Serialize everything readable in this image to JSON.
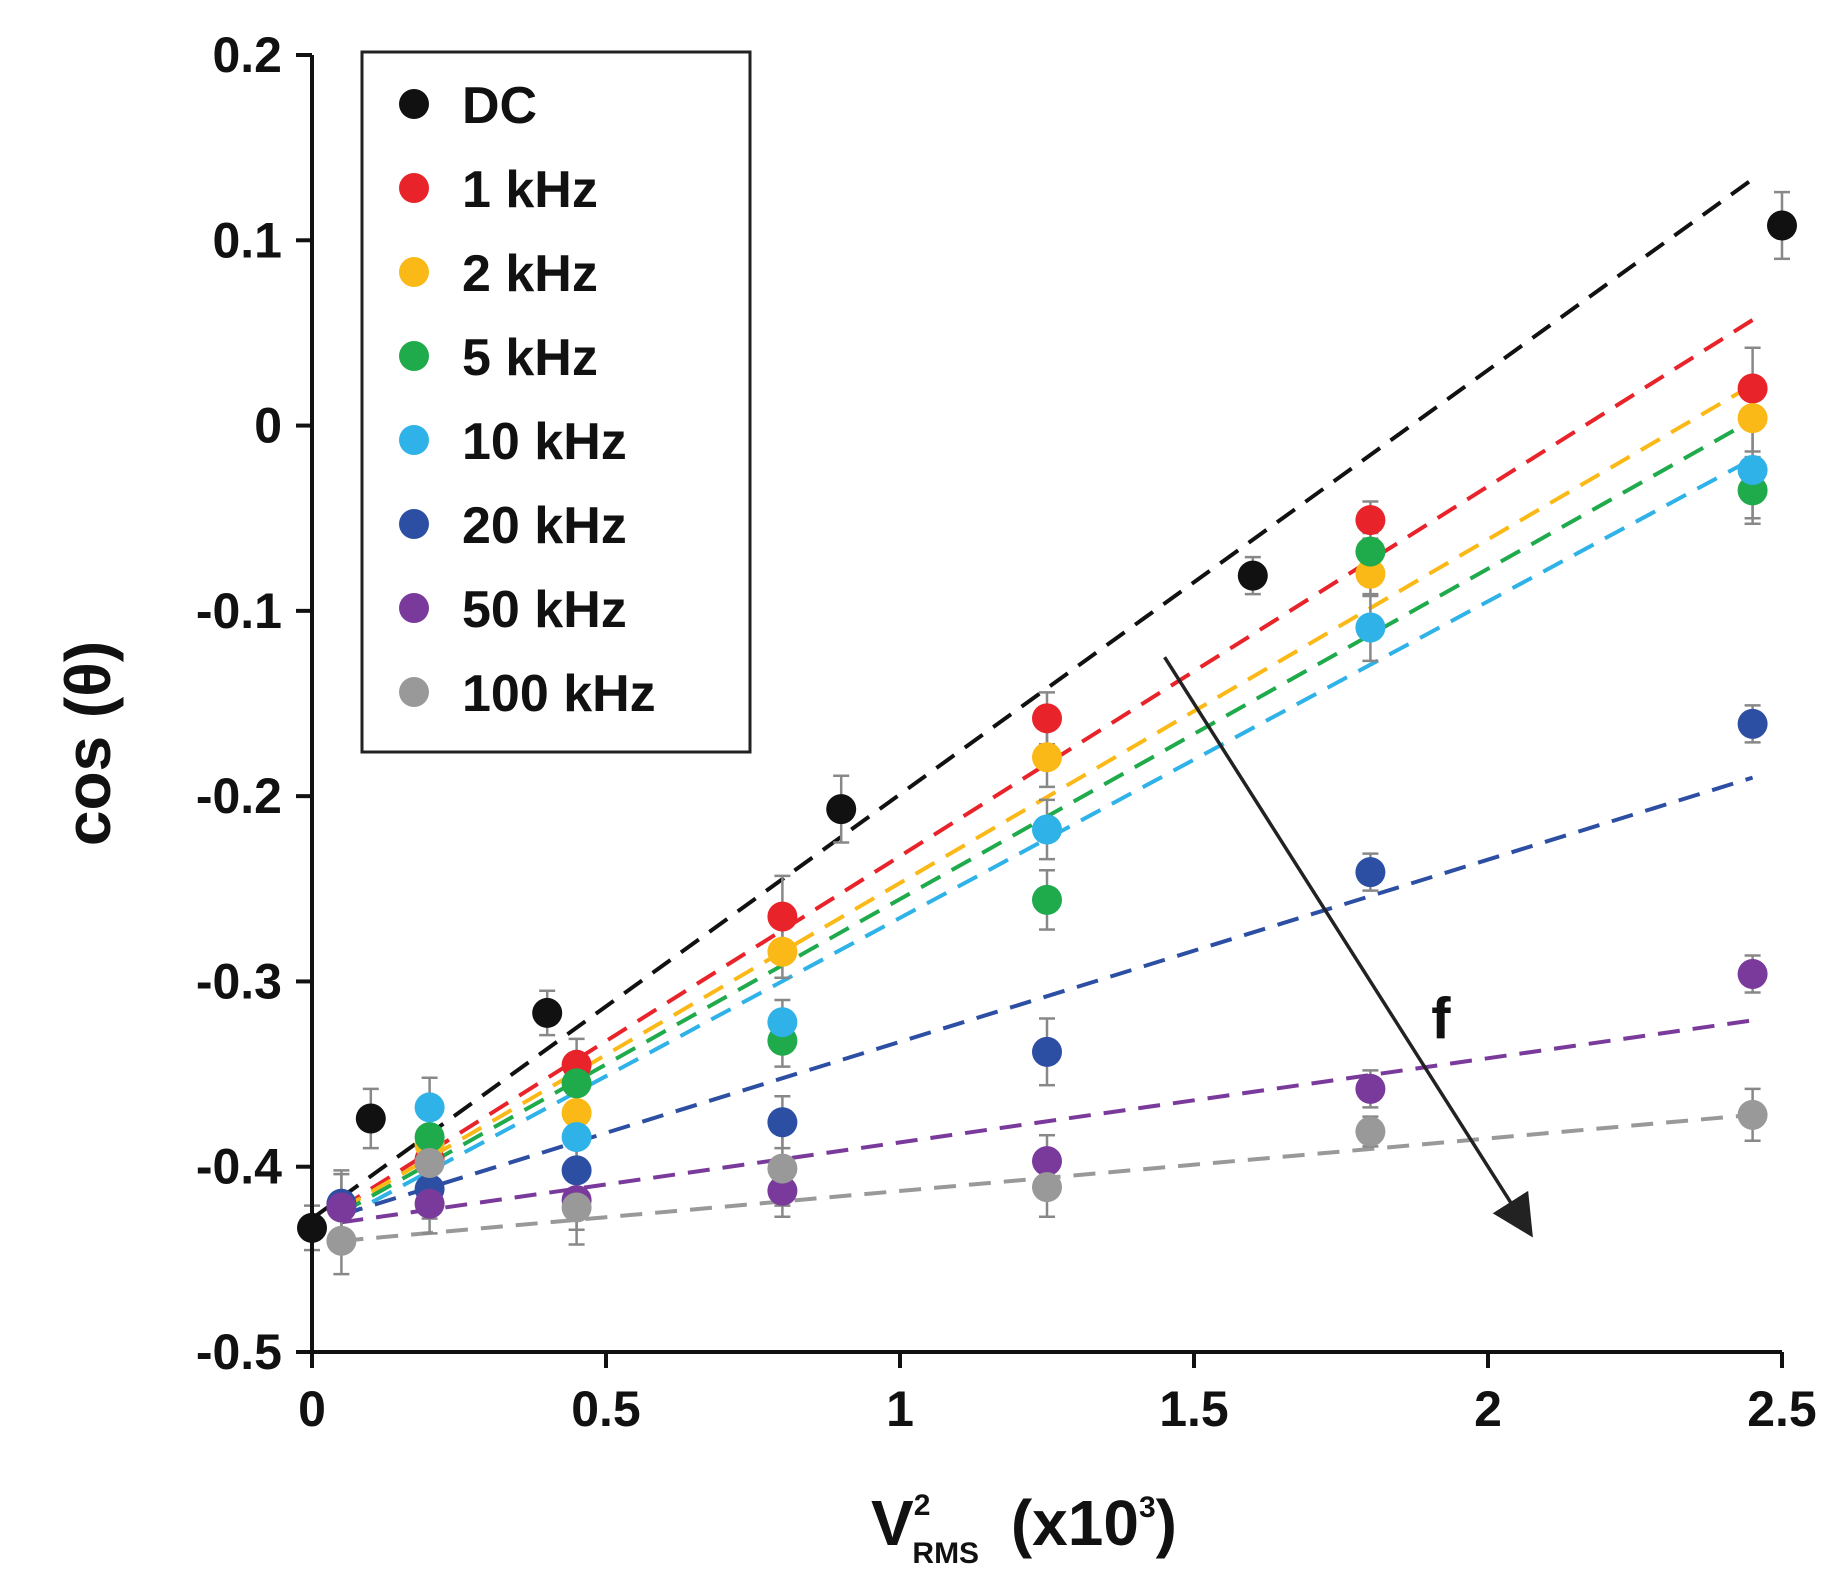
{
  "chart_data": {
    "type": "scatter",
    "title": "",
    "xlabel": {
      "main": "V",
      "sup": "2",
      "sub": "RMS",
      "suffix": "(x10",
      "suffix_sup": "3",
      "suffix_end": ")"
    },
    "ylabel": "cos (θ)",
    "xlim": [
      0,
      2.5
    ],
    "ylim": [
      -0.5,
      0.2
    ],
    "xticks": [
      0,
      0.5,
      1,
      1.5,
      2,
      2.5
    ],
    "xtick_labels": [
      "0",
      "0.5",
      "1",
      "1.5",
      "2",
      "2.5"
    ],
    "yticks": [
      -0.5,
      -0.4,
      -0.3,
      -0.2,
      -0.1,
      0,
      0.1,
      0.2
    ],
    "ytick_labels": [
      "-0.5",
      "-0.4",
      "-0.3",
      "-0.2",
      "-0.1",
      "0",
      "0.1",
      "0.2"
    ],
    "grid": false,
    "legend_position": "top-left",
    "annotation": {
      "text": "f",
      "meaning": "increasing frequency",
      "arrow_from": [
        1.45,
        -0.125
      ],
      "arrow_to": [
        2.07,
        -0.435
      ],
      "label_at": [
        1.92,
        -0.32
      ]
    },
    "series": [
      {
        "name": "DC",
        "color": "#111111",
        "x": [
          0,
          0.1,
          0.4,
          0.9,
          1.6,
          2.5
        ],
        "y": [
          -0.433,
          -0.374,
          -0.317,
          -0.207,
          -0.081,
          0.108
        ],
        "err": [
          0.012,
          0.016,
          0.012,
          0.018,
          0.01,
          0.018
        ],
        "fit": [
          [
            0,
            -0.428
          ],
          [
            2.45,
            0.133
          ]
        ]
      },
      {
        "name": "1 kHz",
        "color": "#e8232a",
        "x": [
          0.2,
          0.45,
          0.8,
          1.25,
          1.8,
          2.45
        ],
        "y": [
          -0.396,
          -0.345,
          -0.265,
          -0.158,
          -0.051,
          0.02
        ],
        "err": [
          0.015,
          0.014,
          0.022,
          0.014,
          0.01,
          0.022
        ],
        "fit": [
          [
            0.05,
            -0.422
          ],
          [
            2.45,
            0.057
          ]
        ]
      },
      {
        "name": "2 kHz",
        "color": "#fbb917",
        "x": [
          0.2,
          0.45,
          0.8,
          1.25,
          1.8,
          2.45
        ],
        "y": [
          -0.388,
          -0.371,
          -0.284,
          -0.179,
          -0.08,
          0.004
        ],
        "err": [
          0.014,
          0.016,
          0.014,
          0.016,
          0.012,
          0.018
        ],
        "fit": [
          [
            0.05,
            -0.423
          ],
          [
            2.45,
            0.022
          ]
        ]
      },
      {
        "name": "5 kHz",
        "color": "#1faa4b",
        "x": [
          0.2,
          0.45,
          0.8,
          1.25,
          1.8,
          2.45
        ],
        "y": [
          -0.384,
          -0.355,
          -0.332,
          -0.256,
          -0.068,
          -0.035
        ],
        "err": [
          0.02,
          0.015,
          0.014,
          0.016,
          0.01,
          0.018
        ],
        "fit": [
          [
            0.05,
            -0.425
          ],
          [
            2.45,
            0.003
          ]
        ]
      },
      {
        "name": "10 kHz",
        "color": "#2eb2e7",
        "x": [
          0.2,
          0.45,
          0.8,
          1.25,
          1.8,
          2.45
        ],
        "y": [
          -0.368,
          -0.384,
          -0.322,
          -0.218,
          -0.109,
          -0.024
        ],
        "err": [
          0.016,
          0.014,
          0.012,
          0.016,
          0.018,
          0.026
        ],
        "fit": [
          [
            0.05,
            -0.428
          ],
          [
            2.45,
            -0.018
          ]
        ]
      },
      {
        "name": "20 kHz",
        "color": "#2d4fa3",
        "x": [
          0.05,
          0.2,
          0.45,
          0.8,
          1.25,
          1.8,
          2.45
        ],
        "y": [
          -0.42,
          -0.412,
          -0.402,
          -0.376,
          -0.338,
          -0.241,
          -0.161
        ],
        "err": [
          0.016,
          0.016,
          0.014,
          0.014,
          0.018,
          0.01,
          0.01
        ],
        "fit": [
          [
            0.05,
            -0.426
          ],
          [
            2.45,
            -0.19
          ]
        ]
      },
      {
        "name": "50 kHz",
        "color": "#7a3a9b",
        "x": [
          0.05,
          0.2,
          0.45,
          0.8,
          1.25,
          1.8,
          2.45
        ],
        "y": [
          -0.422,
          -0.42,
          -0.418,
          -0.413,
          -0.397,
          -0.358,
          -0.296
        ],
        "err": [
          0.02,
          0.016,
          0.016,
          0.014,
          0.014,
          0.01,
          0.01
        ],
        "fit": [
          [
            0.05,
            -0.43
          ],
          [
            2.45,
            -0.321
          ]
        ]
      },
      {
        "name": "100 kHz",
        "color": "#999999",
        "x": [
          0.05,
          0.2,
          0.45,
          0.8,
          1.25,
          1.8,
          2.45
        ],
        "y": [
          -0.44,
          -0.398,
          -0.422,
          -0.401,
          -0.411,
          -0.381,
          -0.372
        ],
        "err": [
          0.018,
          0.014,
          0.02,
          0.02,
          0.016,
          0.008,
          0.014
        ],
        "fit": [
          [
            0.05,
            -0.44
          ],
          [
            2.45,
            -0.372
          ]
        ]
      }
    ]
  }
}
